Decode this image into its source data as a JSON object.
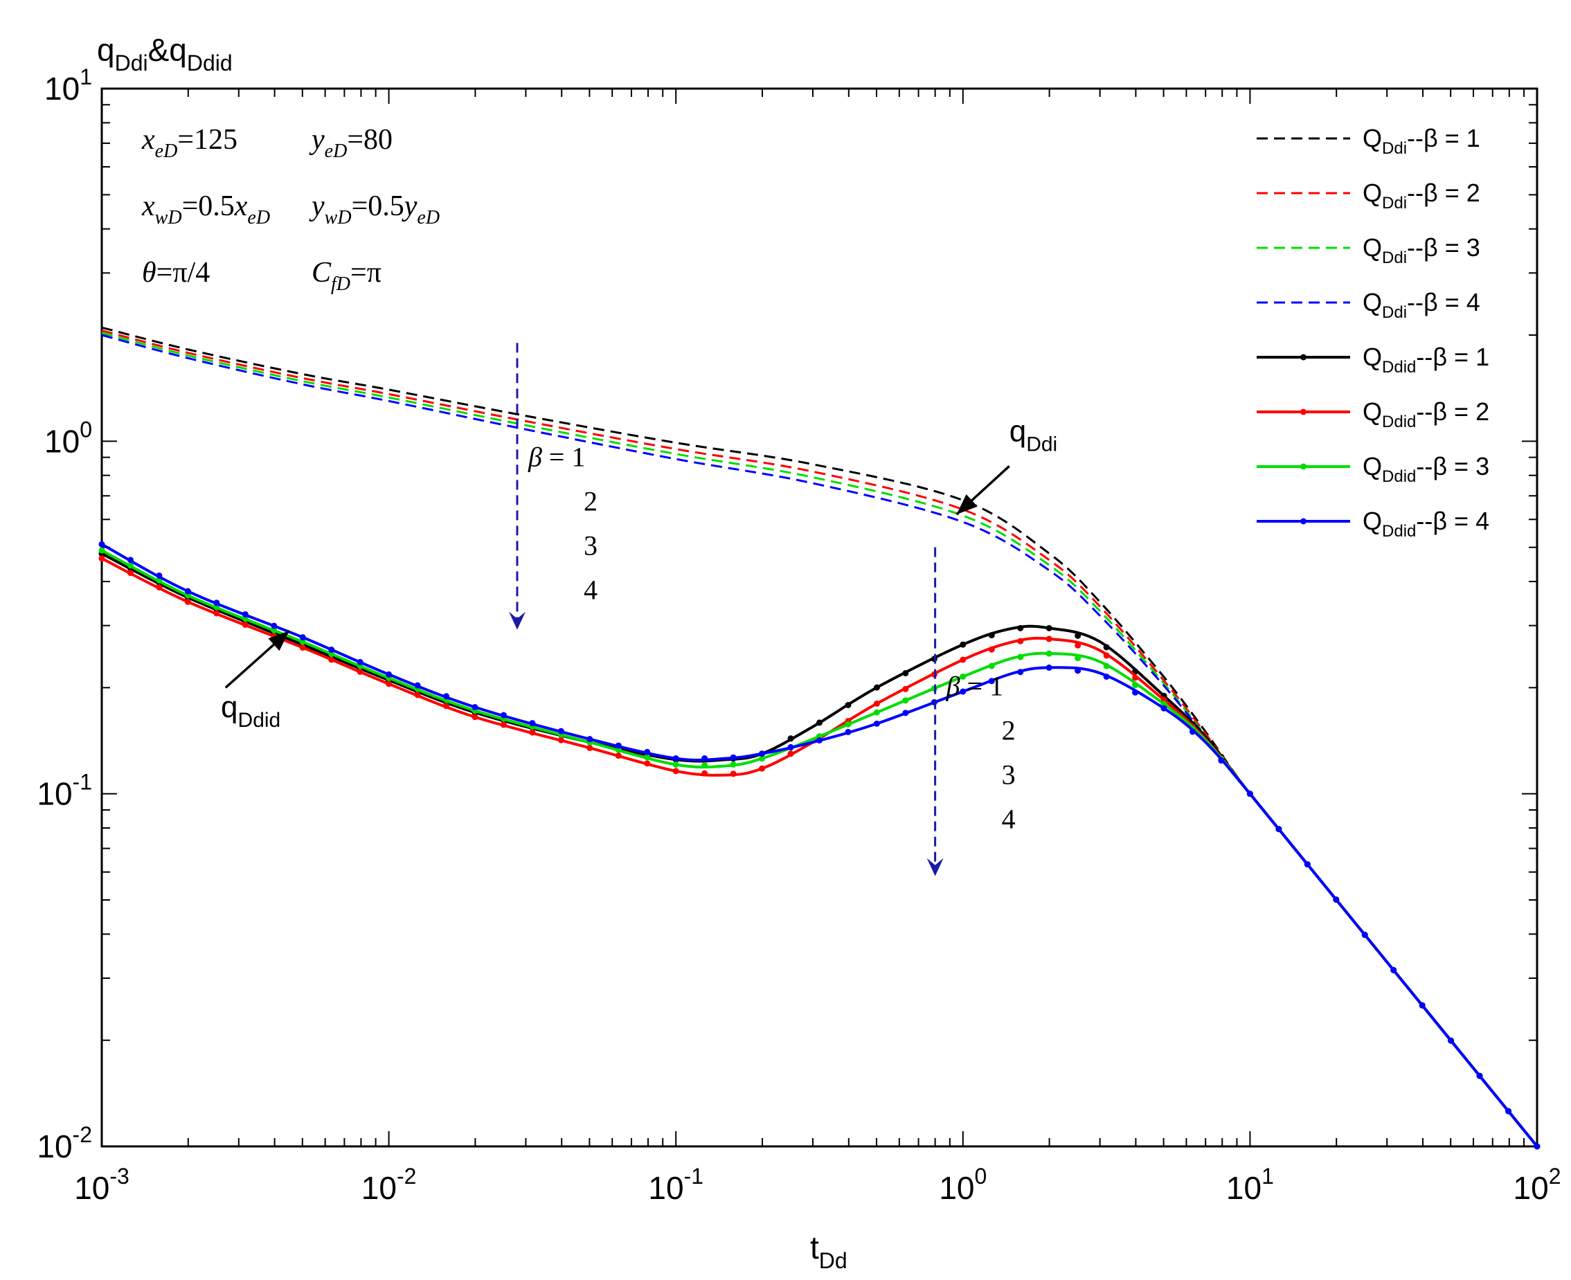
{
  "chart_data": {
    "type": "line",
    "x_scale": "log",
    "y_scale": "log",
    "xlim": [
      0.001,
      100
    ],
    "ylim": [
      0.01,
      10
    ],
    "x_ticks": [
      {
        "base": "10",
        "exp": "-3",
        "value": 0.001
      },
      {
        "base": "10",
        "exp": "-2",
        "value": 0.01
      },
      {
        "base": "10",
        "exp": "-1",
        "value": 0.1
      },
      {
        "base": "10",
        "exp": "0",
        "value": 1
      },
      {
        "base": "10",
        "exp": "1",
        "value": 10
      },
      {
        "base": "10",
        "exp": "2",
        "value": 100
      }
    ],
    "y_ticks": [
      {
        "base": "10",
        "exp": "-2",
        "value": 0.01
      },
      {
        "base": "10",
        "exp": "-1",
        "value": 0.1
      },
      {
        "base": "10",
        "exp": "0",
        "value": 1
      },
      {
        "base": "10",
        "exp": "1",
        "value": 10
      }
    ],
    "ylabel": {
      "main1": "q",
      "sub1": "Ddi",
      "amp": "&",
      "main2": "q",
      "sub2": "Ddid"
    },
    "xlabel": {
      "main": "t",
      "sub": "Dd"
    },
    "params": [
      {
        "row": [
          {
            "sym": "x",
            "sub": "eD",
            "rest": "=125"
          },
          {
            "sym": "y",
            "sub": "eD",
            "rest": "=80"
          }
        ]
      },
      {
        "row": [
          {
            "sym": "x",
            "sub": "wD",
            "rest": "=0.5x",
            "sub2": "eD"
          },
          {
            "sym": "y",
            "sub": "wD",
            "rest": "=0.5y",
            "sub2": "eD"
          }
        ]
      },
      {
        "row": [
          {
            "sym": "θ",
            "sub": "",
            "rest": "=π/4"
          },
          {
            "sym": "C",
            "sub": "fD",
            "rest": "=π"
          }
        ]
      }
    ],
    "legend_position": "top-right",
    "series": [
      {
        "name": "Q_Ddi--β = 1",
        "label_main": "Q",
        "label_sub": "Ddi",
        "label_rest": "--β = 1",
        "color": "#000000",
        "style": "dashed",
        "x": [
          0.001,
          0.002,
          0.005,
          0.01,
          0.03,
          0.1,
          0.3,
          1,
          2,
          3,
          5,
          7,
          10,
          20,
          50,
          100
        ],
        "y": [
          2.1,
          1.82,
          1.55,
          1.4,
          1.18,
          0.99,
          0.86,
          0.68,
          0.48,
          0.35,
          0.215,
          0.15,
          0.1,
          0.05,
          0.02,
          0.01
        ]
      },
      {
        "name": "Q_Ddi--β = 2",
        "label_main": "Q",
        "label_sub": "Ddi",
        "label_rest": "--β = 2",
        "color": "#ff0000",
        "style": "dashed",
        "x": [
          0.001,
          0.002,
          0.005,
          0.01,
          0.03,
          0.1,
          0.3,
          1,
          2,
          3,
          5,
          7,
          10,
          20,
          50,
          100
        ],
        "y": [
          2.06,
          1.78,
          1.51,
          1.36,
          1.14,
          0.95,
          0.82,
          0.64,
          0.46,
          0.34,
          0.21,
          0.148,
          0.1,
          0.05,
          0.02,
          0.01
        ]
      },
      {
        "name": "Q_Ddi--β = 3",
        "label_main": "Q",
        "label_sub": "Ddi",
        "label_rest": "--β = 3",
        "color": "#00dd00",
        "style": "dashed",
        "x": [
          0.001,
          0.002,
          0.005,
          0.01,
          0.03,
          0.1,
          0.3,
          1,
          2,
          3,
          5,
          7,
          10,
          20,
          50,
          100
        ],
        "y": [
          2.03,
          1.75,
          1.48,
          1.33,
          1.11,
          0.92,
          0.79,
          0.615,
          0.445,
          0.33,
          0.206,
          0.146,
          0.1,
          0.05,
          0.02,
          0.01
        ]
      },
      {
        "name": "Q_Ddi--β = 4",
        "label_main": "Q",
        "label_sub": "Ddi",
        "label_rest": "--β = 4",
        "color": "#0000ff",
        "style": "dashed",
        "x": [
          0.001,
          0.002,
          0.005,
          0.01,
          0.03,
          0.1,
          0.3,
          1,
          2,
          3,
          5,
          7,
          10,
          20,
          50,
          100
        ],
        "y": [
          2.0,
          1.72,
          1.45,
          1.3,
          1.08,
          0.89,
          0.76,
          0.59,
          0.43,
          0.32,
          0.203,
          0.145,
          0.1,
          0.05,
          0.02,
          0.01
        ]
      },
      {
        "name": "Q_Ddid--β = 1",
        "label_main": "Q",
        "label_sub": "Ddid",
        "label_rest": "--β = 1",
        "color": "#000000",
        "style": "solid-markers",
        "x": [
          0.001,
          0.002,
          0.005,
          0.01,
          0.02,
          0.05,
          0.1,
          0.15,
          0.2,
          0.3,
          0.5,
          1,
          1.5,
          2,
          3,
          5,
          7,
          10,
          20,
          50,
          100
        ],
        "y": [
          0.48,
          0.36,
          0.265,
          0.21,
          0.17,
          0.14,
          0.125,
          0.125,
          0.13,
          0.155,
          0.2,
          0.265,
          0.295,
          0.295,
          0.27,
          0.19,
          0.145,
          0.1,
          0.05,
          0.02,
          0.01
        ]
      },
      {
        "name": "Q_Ddid--β = 2",
        "label_main": "Q",
        "label_sub": "Ddid",
        "label_rest": "--β = 2",
        "color": "#ff0000",
        "style": "solid-markers",
        "x": [
          0.001,
          0.002,
          0.005,
          0.01,
          0.02,
          0.05,
          0.1,
          0.15,
          0.2,
          0.3,
          0.5,
          1,
          1.5,
          2,
          3,
          5,
          7,
          10,
          20,
          50,
          100
        ],
        "y": [
          0.465,
          0.35,
          0.26,
          0.205,
          0.165,
          0.135,
          0.116,
          0.113,
          0.118,
          0.14,
          0.18,
          0.24,
          0.27,
          0.275,
          0.255,
          0.185,
          0.143,
          0.1,
          0.05,
          0.02,
          0.01
        ]
      },
      {
        "name": "Q_Ddid--β = 3",
        "label_main": "Q",
        "label_sub": "Ddid",
        "label_rest": "--β = 3",
        "color": "#00dd00",
        "style": "solid-markers",
        "x": [
          0.001,
          0.002,
          0.005,
          0.01,
          0.02,
          0.05,
          0.1,
          0.15,
          0.2,
          0.3,
          0.5,
          1,
          1.5,
          2,
          3,
          5,
          7,
          10,
          20,
          50,
          100
        ],
        "y": [
          0.49,
          0.365,
          0.27,
          0.213,
          0.172,
          0.14,
          0.121,
          0.12,
          0.126,
          0.143,
          0.17,
          0.215,
          0.243,
          0.25,
          0.237,
          0.18,
          0.142,
          0.1,
          0.05,
          0.02,
          0.01
        ]
      },
      {
        "name": "Q_Ddid--β = 4",
        "label_main": "Q",
        "label_sub": "Ddid",
        "label_rest": "--β = 4",
        "color": "#0000ff",
        "style": "solid-markers",
        "x": [
          0.001,
          0.002,
          0.005,
          0.01,
          0.02,
          0.05,
          0.1,
          0.15,
          0.2,
          0.3,
          0.5,
          1,
          1.5,
          2,
          3,
          5,
          7,
          10,
          20,
          50,
          100
        ],
        "y": [
          0.51,
          0.375,
          0.278,
          0.218,
          0.176,
          0.143,
          0.126,
          0.126,
          0.13,
          0.14,
          0.158,
          0.195,
          0.22,
          0.228,
          0.22,
          0.175,
          0.14,
          0.1,
          0.05,
          0.02,
          0.01
        ]
      }
    ],
    "annotations": [
      {
        "id": "beta-group-upper",
        "beta": "β",
        "values": [
          "1",
          "2",
          "3",
          "4"
        ],
        "eq": " = ",
        "arrow_x": 0.028,
        "arrow_y_from": 1.9,
        "arrow_y_to": 0.3,
        "text_x": 0.028,
        "text_y": 0.85
      },
      {
        "id": "beta-group-lower",
        "beta": "β",
        "values": [
          "1",
          "2",
          "3",
          "4"
        ],
        "eq": " = ",
        "arrow_x": 0.8,
        "arrow_y_from": 0.5,
        "arrow_y_to": 0.06,
        "text_x": 0.8,
        "text_y": 0.19
      },
      {
        "id": "label-qddi",
        "main": "q",
        "sub": "Ddi",
        "text_x": 1.45,
        "text_y": 1.0,
        "arrow_from_x": 1.45,
        "arrow_from_y": 0.85,
        "arrow_to_x": 0.95,
        "arrow_to_y": 0.62
      },
      {
        "id": "label-qddid",
        "main": "q",
        "sub": "Ddid",
        "text_x": 0.0026,
        "text_y": 0.165,
        "arrow_from_x": 0.0027,
        "arrow_from_y": 0.2,
        "arrow_to_x": 0.0045,
        "arrow_to_y": 0.29
      }
    ]
  }
}
